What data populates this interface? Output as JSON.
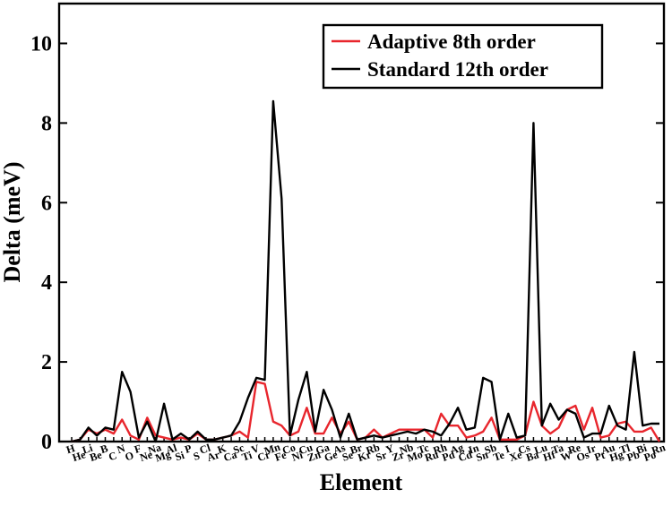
{
  "chart_data": {
    "type": "line",
    "xlabel": "Element",
    "ylabel": "Delta (meV)",
    "ylim": [
      0,
      11
    ],
    "yticks": [
      0,
      2,
      4,
      6,
      8,
      10
    ],
    "legend_position": "top-right",
    "grid": false,
    "categories": [
      "H",
      "He",
      "Li",
      "Be",
      "B",
      "C",
      "N",
      "O",
      "F",
      "Ne",
      "Na",
      "Mg",
      "Al",
      "Si",
      "P",
      "S",
      "Cl",
      "Ar",
      "K",
      "Ca",
      "Sc",
      "Ti",
      "V",
      "Cr",
      "Mn",
      "Fe",
      "Co",
      "Ni",
      "Cu",
      "Zn",
      "Ga",
      "Ge",
      "As",
      "Se",
      "Br",
      "Kr",
      "Rb",
      "Sr",
      "Y",
      "Zr",
      "Nb",
      "Mo",
      "Tc",
      "Ru",
      "Rh",
      "Pd",
      "Ag",
      "Cd",
      "In",
      "Sn",
      "Sb",
      "Te",
      "I",
      "Xe",
      "Cs",
      "Ba",
      "Lu",
      "Hf",
      "Ta",
      "W",
      "Re",
      "Os",
      "Ir",
      "Pt",
      "Au",
      "Hg",
      "Tl",
      "Pb",
      "Bi",
      "Po",
      "Rn"
    ],
    "series": [
      {
        "name": "Adaptive 8th order",
        "color": "#e8262d",
        "values": [
          0.0,
          0.05,
          0.3,
          0.2,
          0.3,
          0.2,
          0.55,
          0.15,
          0.05,
          0.6,
          0.15,
          0.1,
          0.05,
          0.1,
          0.05,
          0.2,
          0.05,
          0.05,
          0.1,
          0.15,
          0.25,
          0.1,
          1.5,
          1.45,
          0.5,
          0.4,
          0.15,
          0.25,
          0.85,
          0.2,
          0.2,
          0.6,
          0.2,
          0.5,
          0.05,
          0.1,
          0.3,
          0.1,
          0.2,
          0.3,
          0.3,
          0.3,
          0.3,
          0.1,
          0.7,
          0.4,
          0.4,
          0.1,
          0.15,
          0.25,
          0.6,
          0.05,
          0.05,
          0.05,
          0.15,
          1.0,
          0.4,
          0.2,
          0.35,
          0.8,
          0.9,
          0.3,
          0.85,
          0.1,
          0.15,
          0.45,
          0.5,
          0.25,
          0.25,
          0.35,
          0.0
        ]
      },
      {
        "name": "Standard 12th order",
        "color": "#000000",
        "values": [
          0.0,
          0.05,
          0.35,
          0.15,
          0.35,
          0.3,
          1.75,
          1.25,
          0.1,
          0.5,
          0.0,
          0.95,
          0.05,
          0.2,
          0.05,
          0.25,
          0.05,
          0.05,
          0.1,
          0.15,
          0.5,
          1.1,
          1.6,
          1.55,
          8.55,
          6.1,
          0.15,
          1.05,
          1.75,
          0.25,
          1.3,
          0.8,
          0.1,
          0.7,
          0.05,
          0.1,
          0.15,
          0.1,
          0.15,
          0.2,
          0.25,
          0.2,
          0.3,
          0.25,
          0.15,
          0.45,
          0.85,
          0.3,
          0.35,
          1.6,
          1.5,
          0.05,
          0.7,
          0.1,
          0.15,
          8.0,
          0.4,
          0.95,
          0.55,
          0.8,
          0.7,
          0.1,
          0.2,
          0.2,
          0.9,
          0.4,
          0.3,
          2.25,
          0.4,
          0.45,
          0.45
        ]
      }
    ]
  }
}
